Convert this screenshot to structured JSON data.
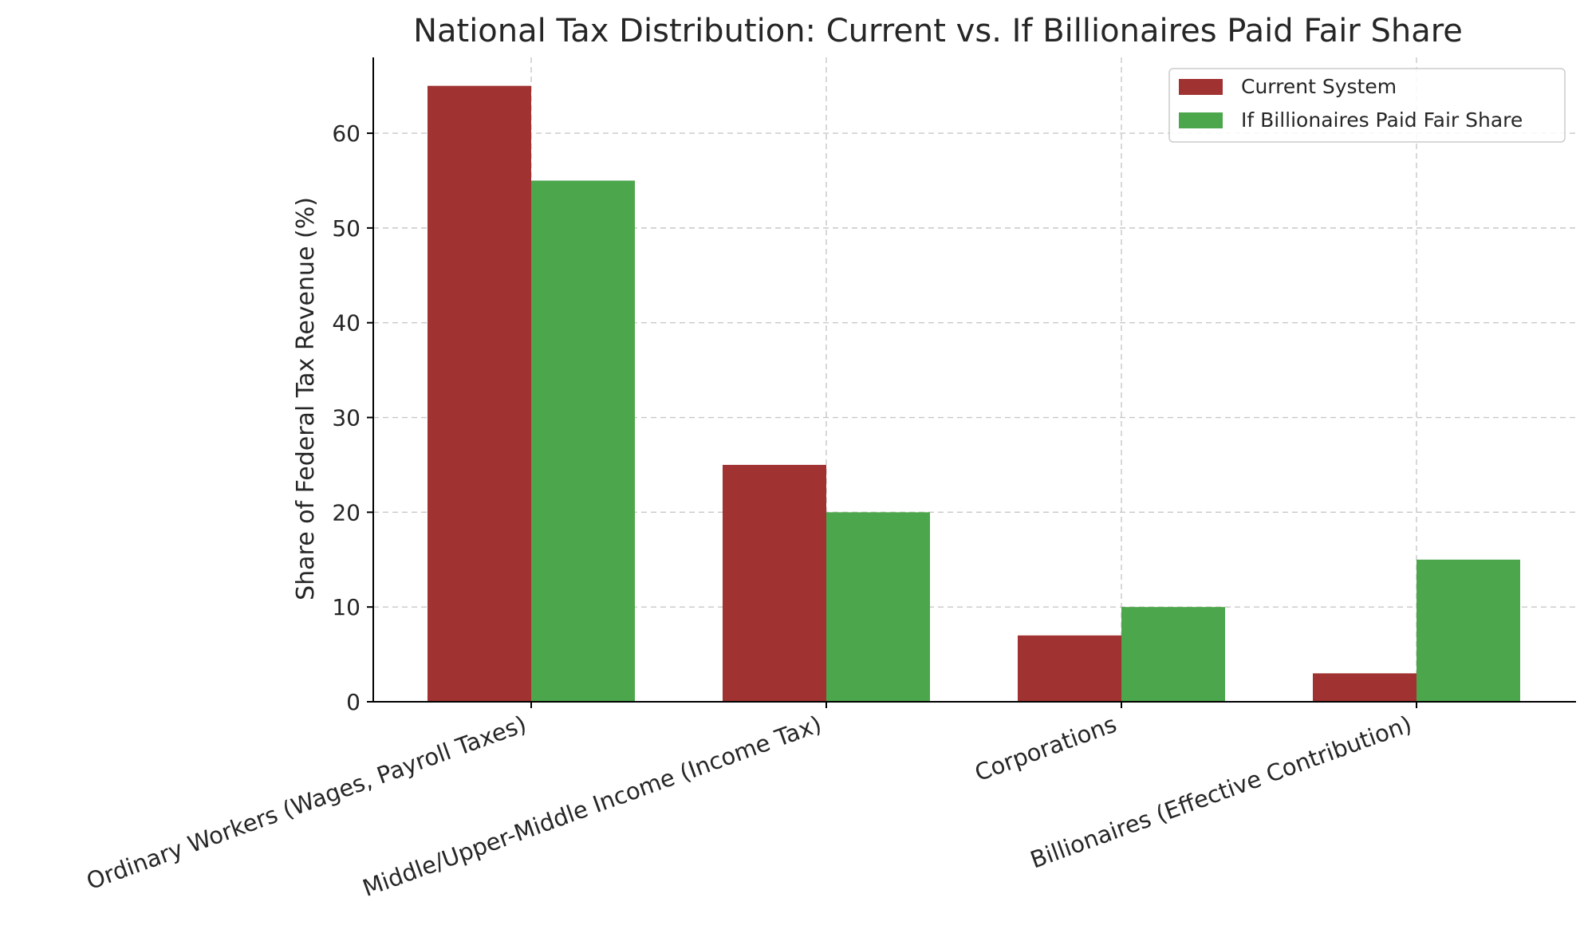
{
  "chart_data": {
    "type": "bar",
    "title": "National Tax Distribution: Current vs. If Billionaires Paid Fair Share",
    "xlabel": "",
    "ylabel": "Share of Federal Tax Revenue (%)",
    "categories": [
      "Ordinary Workers (Wages, Payroll Taxes)",
      "Middle/Upper-Middle Income (Income Tax)",
      "Corporations",
      "Billionaires (Effective Contribution)"
    ],
    "series": [
      {
        "name": "Current System",
        "values": [
          65,
          25,
          7,
          3
        ],
        "color": "#a03232"
      },
      {
        "name": "If Billionaires Paid Fair Share",
        "values": [
          55,
          20,
          10,
          15
        ],
        "color": "#4ca64c"
      }
    ],
    "ylim": [
      0,
      68
    ],
    "yticks": [
      0,
      10,
      20,
      30,
      40,
      50,
      60
    ],
    "grid": true,
    "legend_position": "top-right"
  }
}
